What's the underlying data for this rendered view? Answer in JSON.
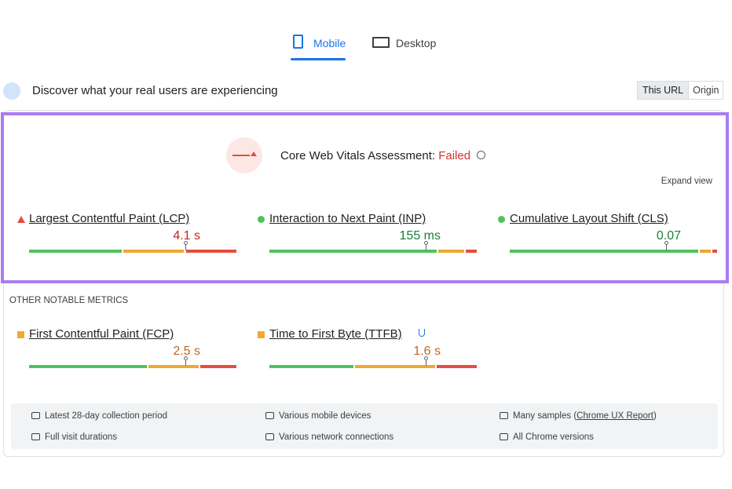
{
  "tabs": [
    "Mobile",
    "Desktop"
  ],
  "header": {
    "title": "Discover what your real users are experiencing",
    "toggle": [
      "This URL",
      "Origin"
    ]
  },
  "assessment": {
    "label": "Core Web Vitals Assessment:",
    "status": "Failed",
    "expand": "Expand view"
  },
  "core_metrics": [
    {
      "name": "Largest Contentful Paint (LCP)",
      "value": "4.1 s",
      "rating": "poor",
      "distribution": [
        45,
        30,
        25
      ]
    },
    {
      "name": "Interaction to Next Paint (INP)",
      "value": "155 ms",
      "rating": "good",
      "distribution": [
        81,
        13,
        6
      ]
    },
    {
      "name": "Cumulative Layout Shift (CLS)",
      "value": "0.07",
      "rating": "good",
      "distribution": [
        91,
        6,
        3
      ]
    }
  ],
  "other_title": "OTHER NOTABLE METRICS",
  "other_metrics": [
    {
      "name": "First Contentful Paint (FCP)",
      "value": "2.5 s",
      "rating": "needs-improvement",
      "distribution": [
        57,
        25,
        18
      ]
    },
    {
      "name": "Time to First Byte (TTFB)",
      "value": "1.6 s",
      "rating": "needs-improvement",
      "distribution": [
        41,
        39,
        20
      ]
    }
  ],
  "footer": [
    {
      "text": "Latest 28-day collection period"
    },
    {
      "text": "Various mobile devices"
    },
    {
      "text": "Many samples (",
      "link": "Chrome UX Report",
      "suffix": ")"
    },
    {
      "text": "Full visit durations"
    },
    {
      "text": "Various network connections"
    },
    {
      "text": "All Chrome versions"
    }
  ]
}
